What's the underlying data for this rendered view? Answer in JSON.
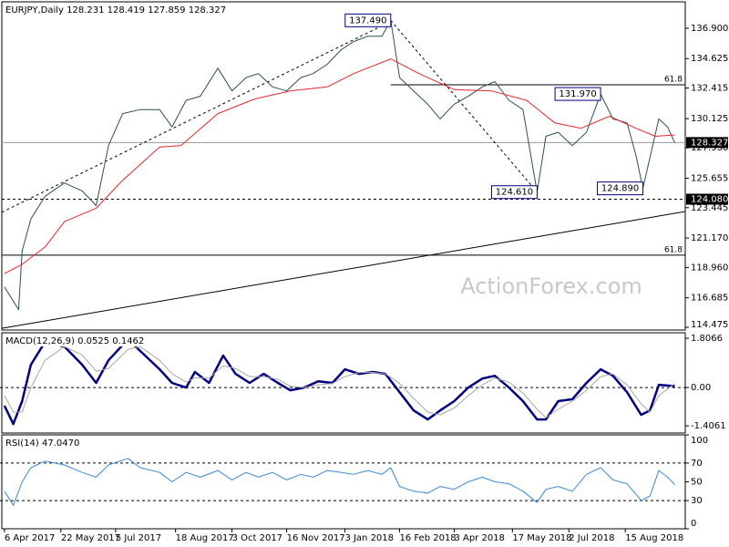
{
  "chart_data": [
    {
      "type": "line",
      "title": "EURJPY,Daily  128.231 128.419 127.859 128.327",
      "watermark": "ActionForex.com",
      "xlim": [
        -1.5,
        386
      ],
      "ylim": [
        114.27,
        138.88
      ],
      "yticks": [
        {
          "value": 136.9,
          "label": "136.900"
        },
        134.625,
        132.415,
        130.125,
        {
          "value": 127.93,
          "label": "127.930"
        },
        125.655,
        123.445,
        {
          "value": 121.17,
          "label": "121.170"
        },
        {
          "value": 118.96,
          "label": "118.960"
        },
        116.685,
        114.475
      ],
      "series": [
        {
          "color": "#2f4f4f",
          "line_width": 1,
          "x": [
            0,
            8,
            10,
            15,
            23,
            34,
            44,
            52,
            59,
            67,
            77,
            88,
            95,
            103,
            111,
            121,
            129,
            137,
            144,
            152,
            160,
            168,
            175,
            183,
            191,
            198,
            206,
            214,
            219,
            224,
            232,
            240,
            247,
            255,
            263,
            271,
            278,
            286,
            294,
            302,
            307,
            314,
            322,
            330,
            338,
            345,
            353,
            358,
            362,
            371,
            376,
            380
          ],
          "values": [
            117.5,
            115.8,
            120.2,
            122.6,
            124.3,
            125.3,
            124.7,
            123.6,
            128.1,
            130.5,
            130.8,
            130.8,
            129.5,
            131.5,
            131.8,
            133.9,
            132.2,
            133.2,
            133.5,
            132.5,
            132.2,
            133.2,
            133.5,
            134.2,
            135.3,
            135.9,
            136.3,
            136.3,
            137.49,
            133.2,
            132.2,
            131.2,
            130.1,
            131.2,
            131.8,
            132.5,
            132.9,
            131.5,
            130.8,
            124.61,
            128.8,
            129.1,
            128.1,
            129.1,
            131.97,
            130.1,
            129.8,
            127.4,
            124.89,
            130.1,
            129.5,
            128.327
          ]
        },
        {
          "color": "#e8282b",
          "line_width": 1,
          "x": [
            0,
            10,
            23,
            34,
            52,
            67,
            88,
            100,
            121,
            142,
            162,
            183,
            198,
            219,
            235,
            255,
            276,
            296,
            312,
            327,
            343,
            358,
            369,
            380
          ],
          "values": [
            118.5,
            119.2,
            120.5,
            122.4,
            123.4,
            125.5,
            128.0,
            128.1,
            130.5,
            131.6,
            132.2,
            132.5,
            133.5,
            134.6,
            133.5,
            132.3,
            132.2,
            131.5,
            129.8,
            129.4,
            130.3,
            129.4,
            128.8,
            128.9
          ]
        }
      ],
      "annotations": [
        {
          "x": 219,
          "value": 137.49,
          "label": "137.490"
        },
        {
          "x": 338,
          "value": 131.97,
          "label": "131.970"
        },
        {
          "x": 302,
          "value": 124.61,
          "label": "124.610"
        },
        {
          "x": 362,
          "value": 124.89,
          "label": "124.890"
        }
      ],
      "levels": [
        {
          "y": 132.66,
          "from": 219,
          "style": "solid",
          "label": "61.8"
        },
        {
          "y": 119.88,
          "from": -1.5,
          "style": "solid",
          "label": "61.8"
        },
        {
          "y": 128.327,
          "from": -1.5,
          "style": "gray",
          "label": "128.327",
          "box": true
        },
        {
          "y": 124.08,
          "from": -1.5,
          "style": "dashed",
          "label": "124.080",
          "box": true
        }
      ],
      "trendlines": [
        {
          "x": [
            -1.5,
            386
          ],
          "y": [
            114.4,
            123.16
          ],
          "style": "solid"
        },
        {
          "x": [
            -1.5,
            219
          ],
          "y": [
            123.1,
            137.4
          ],
          "style": "dashed"
        },
        {
          "x": [
            219,
            302
          ],
          "y": [
            137.49,
            124.61
          ],
          "style": "dashed"
        }
      ]
    },
    {
      "type": "line",
      "title": "MACD(12,26,9) 0.0525 0.1462",
      "xlim": [
        -1.5,
        386
      ],
      "ylim": [
        -1.67,
        2.01
      ],
      "yticks": [
        1.8066,
        {
          "value": 0,
          "label": "0.00"
        },
        -1.4061
      ],
      "levels": [
        {
          "y": 0,
          "style": "dashed"
        }
      ],
      "series": [
        {
          "color": "#000080",
          "line_width": 2.5,
          "x": [
            0,
            5,
            10,
            15,
            23,
            34,
            44,
            52,
            59,
            70,
            77,
            88,
            95,
            103,
            108,
            116,
            124,
            131,
            139,
            147,
            155,
            162,
            170,
            178,
            186,
            193,
            201,
            209,
            216,
            224,
            232,
            240,
            247,
            255,
            263,
            271,
            278,
            286,
            294,
            302,
            307,
            314,
            322,
            330,
            338,
            345,
            353,
            361,
            366,
            371,
            380
          ],
          "values": [
            -0.67,
            -1.34,
            -0.5,
            0.84,
            1.67,
            1.5,
            0.84,
            0.17,
            1.0,
            1.77,
            1.34,
            0.67,
            0.17,
            0,
            0.57,
            0.17,
            1.17,
            0.5,
            0.17,
            0.5,
            0.17,
            -0.1,
            0,
            0.23,
            0.17,
            0.67,
            0.5,
            0.57,
            0.5,
            -0.17,
            -0.84,
            -1.17,
            -0.84,
            -0.5,
            0,
            0.33,
            0.43,
            0,
            -0.5,
            -1.17,
            -1.17,
            -0.5,
            -0.43,
            0.17,
            0.67,
            0.43,
            -0.17,
            -1.0,
            -0.84,
            0.1,
            0.0525
          ]
        },
        {
          "color": "#a8a8a8",
          "line_width": 1,
          "x": [
            0,
            5,
            10,
            15,
            23,
            34,
            44,
            52,
            59,
            70,
            77,
            88,
            95,
            103,
            108,
            116,
            124,
            131,
            139,
            147,
            155,
            162,
            170,
            178,
            186,
            193,
            201,
            209,
            216,
            224,
            232,
            240,
            247,
            255,
            263,
            271,
            278,
            286,
            294,
            302,
            307,
            314,
            322,
            330,
            338,
            345,
            353,
            361,
            366,
            371,
            380
          ],
          "values": [
            -0.3,
            -0.9,
            -0.9,
            0.0,
            1.0,
            1.5,
            1.2,
            0.6,
            0.7,
            1.4,
            1.5,
            1.0,
            0.5,
            0.2,
            0.35,
            0.35,
            0.8,
            0.7,
            0.4,
            0.4,
            0.3,
            0.05,
            0.0,
            0.1,
            0.15,
            0.4,
            0.55,
            0.55,
            0.5,
            0.15,
            -0.4,
            -0.9,
            -1.0,
            -0.75,
            -0.3,
            0.1,
            0.35,
            0.2,
            -0.2,
            -0.8,
            -1.1,
            -0.8,
            -0.5,
            -0.1,
            0.4,
            0.5,
            0.1,
            -0.6,
            -0.9,
            -0.3,
            0.1462
          ]
        }
      ]
    },
    {
      "type": "line",
      "title": "RSI(14) 47.0470",
      "xlim": [
        -1.5,
        386
      ],
      "ylim": [
        0,
        100
      ],
      "yticks": [
        100,
        70,
        50,
        30,
        0
      ],
      "levels": [
        {
          "y": 70,
          "style": "dashed"
        },
        {
          "y": 30,
          "style": "dashed"
        }
      ],
      "xticks": [
        {
          "value": 0,
          "label": "6 Apr 2017"
        },
        {
          "value": 32,
          "label": "22 May 2017"
        },
        {
          "value": 63,
          "label": "5 Jul 2017"
        },
        {
          "value": 97,
          "label": "18 Aug 2017"
        },
        {
          "value": 129,
          "label": "3 Oct 2017"
        },
        {
          "value": 160,
          "label": "16 Nov 2017"
        },
        {
          "value": 193,
          "label": "3 Jan 2018"
        },
        {
          "value": 224,
          "label": "16 Feb 2018"
        },
        {
          "value": 255,
          "label": "3 Apr 2018"
        },
        {
          "value": 288,
          "label": "17 May 2018"
        },
        {
          "value": 320,
          "label": "2 Jul 2018"
        },
        {
          "value": 352,
          "label": "15 Aug 2018"
        }
      ],
      "series": [
        {
          "color": "#3a8ad6",
          "line_width": 1,
          "x": [
            0,
            5,
            10,
            15,
            23,
            34,
            44,
            52,
            59,
            70,
            77,
            88,
            95,
            103,
            111,
            121,
            129,
            137,
            144,
            152,
            160,
            168,
            175,
            183,
            191,
            198,
            206,
            214,
            219,
            224,
            232,
            240,
            247,
            255,
            263,
            271,
            278,
            286,
            294,
            302,
            307,
            314,
            322,
            330,
            338,
            345,
            353,
            361,
            366,
            371,
            376,
            380
          ],
          "values": [
            40,
            25,
            50,
            65,
            72,
            68,
            60,
            55,
            68,
            75,
            65,
            60,
            50,
            60,
            55,
            62,
            52,
            60,
            55,
            60,
            52,
            58,
            55,
            62,
            60,
            58,
            62,
            58,
            65,
            45,
            40,
            38,
            45,
            42,
            50,
            55,
            50,
            48,
            40,
            28,
            42,
            45,
            40,
            58,
            65,
            52,
            48,
            30,
            35,
            62,
            55,
            47.047
          ]
        }
      ]
    }
  ]
}
